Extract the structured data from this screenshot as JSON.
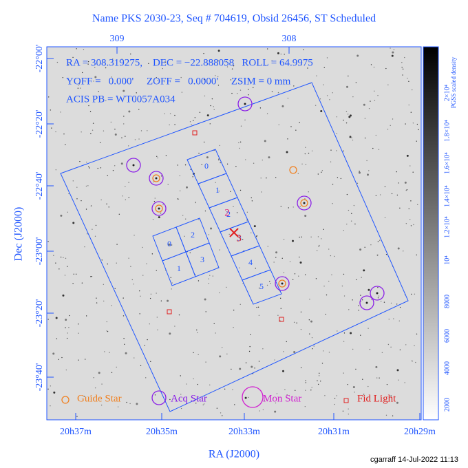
{
  "header": {
    "title": "Name PKS 2030-23, Seq # 704619, Obsid 26456, ST Scheduled"
  },
  "top_axis": {
    "labels": [
      "309",
      "308"
    ]
  },
  "bottom_axis": {
    "labels": [
      "20h37m",
      "20h35m",
      "20h33m",
      "20h31m",
      "20h29m"
    ],
    "title": "RA (J2000)"
  },
  "left_axis": {
    "labels": [
      "-22°00'",
      "-22°20'",
      "-22°40'",
      "-23°00'",
      "-23°20'",
      "-23°40'"
    ],
    "title": "Dec (J2000)"
  },
  "colorbar": {
    "title": "PGSS scaled density",
    "labels": [
      "2000",
      "4000",
      "6000",
      "8000",
      "10⁴",
      "1.2×10⁴",
      "1.4×10⁴",
      "1.6×10⁴",
      "1.8×10⁴",
      "2×10⁴"
    ]
  },
  "annotations": {
    "pointing": "RA = 308.319275,    DEC = −22.888058   ROLL = 64.9975",
    "offsets": "YOFF =   0.000'     ZOFF =   0.0000'     ZSIM = 0 mm",
    "pb": "ACIS PB = WT0057A034"
  },
  "chips": {
    "acis_s": [
      "0",
      "1",
      "2",
      "3",
      "4",
      "5"
    ],
    "acis_i": [
      "0",
      "1",
      "2",
      "3"
    ]
  },
  "aimpoint_labels": [
    "2",
    "3"
  ],
  "legend": [
    "Guide Star",
    "Acq Star",
    "Mon Star",
    "Fid Light"
  ],
  "footer": "cgarraff 14-Jul-2022 11:13"
}
